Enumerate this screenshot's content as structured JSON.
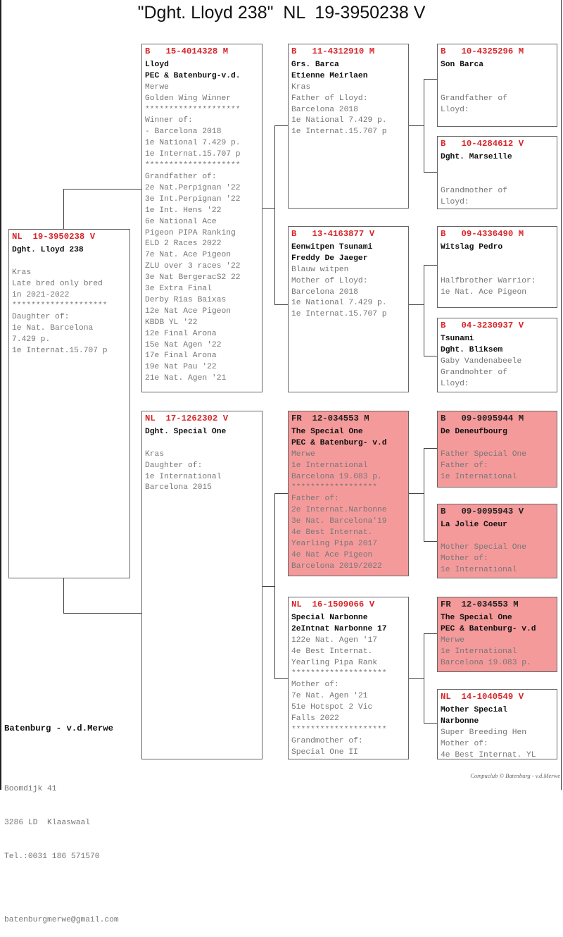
{
  "title": "\"Dght. Lloyd 238\"  NL  19-3950238 V",
  "pink_color": "#f59a9b",
  "ring_color": "#d8262a",
  "boxes": [
    {
      "id": "subject",
      "header": "NL  19-3950238 V",
      "pink": false,
      "names": [
        "Dght. Lloyd 238"
      ],
      "info": [
        "",
        "Kras",
        "Late bred only bred",
        "in 2021-2022",
        "********************",
        "Daughter of:",
        "1e Nat. Barcelona",
        "7.429 p.",
        "1e Internat.15.707 p"
      ]
    },
    {
      "id": "sire",
      "header": "B   15-4014328 M",
      "pink": false,
      "names": [
        "Lloyd",
        "PEC & Batenburg-v.d."
      ],
      "info": [
        "Merwe",
        "Golden Wing Winner",
        "********************",
        "Winner of:",
        "- Barcelona 2018",
        "1e National 7.429 p.",
        "1e Internat.15.707 p",
        "********************",
        "Grandfather of:",
        "2e Nat.Perpignan '22",
        "3e Int.Perpignan '22",
        "1e Int. Hens '22",
        "6e National Ace",
        "Pigeon PIPA Ranking",
        "ELD 2 Races 2022",
        "7e Nat. Ace Pigeon",
        "ZLU over 3 races '22",
        "3e Nat BergeracS2 22",
        "3e Extra Final",
        "Derby Rias Baixas",
        "12e Nat Ace Pigeon",
        "KBDB YL '22",
        "12e Final Arona",
        "15e Nat Agen '22",
        "17e Final Arona",
        "19e Nat Pau '22",
        "21e Nat. Agen '21"
      ]
    },
    {
      "id": "dam",
      "header": "NL  17-1262302 V",
      "pink": false,
      "names": [
        "Dght. Special One"
      ],
      "info": [
        "",
        "Kras",
        "Daughter of:",
        "1e International",
        "Barcelona 2015"
      ]
    },
    {
      "id": "sire-sire",
      "header": "B   11-4312910 M",
      "pink": false,
      "names": [
        "Grs. Barca",
        "Etienne Meirlaen"
      ],
      "info": [
        "Kras",
        "Father of Lloyd:",
        "Barcelona 2018",
        "1e National 7.429 p.",
        "1e Internat.15.707 p"
      ]
    },
    {
      "id": "sire-dam",
      "header": "B   13-4163877 V",
      "pink": false,
      "names": [
        "Eenwitpen Tsunami",
        "Freddy De Jaeger"
      ],
      "info": [
        "Blauw witpen",
        "Mother of Lloyd:",
        "Barcelona 2018",
        "1e National 7.429 p.",
        "1e Internat.15.707 p"
      ]
    },
    {
      "id": "dam-sire",
      "header": "FR  12-034553 M",
      "pink": true,
      "names": [
        "The Special One",
        "PEC & Batenburg- v.d"
      ],
      "info": [
        "Merwe",
        "1e International",
        "Barcelona 19.083 p.",
        "******************",
        "Father of:",
        "2e Internat.Narbonne",
        "3e Nat. Barcelona'19",
        "4e Best Internat.",
        "Yearling Pipa 2017",
        "4e Nat Ace Pigeon",
        "Barcelona 2019/2022"
      ]
    },
    {
      "id": "dam-dam",
      "header": "NL  16-1509066 V",
      "pink": false,
      "names": [
        "Special Narbonne",
        "2eIntnat Narbonne 17"
      ],
      "info": [
        "122e Nat. Agen '17",
        "4e Best Internat.",
        "Yearling Pipa Rank",
        "********************",
        "Mother of:",
        "7e Nat. Agen '21",
        "51e Hotspot 2 Vic",
        "Falls 2022",
        "********************",
        "Grandmother of:",
        "Special One II"
      ]
    },
    {
      "id": "sss",
      "header": "B   10-4325296 M",
      "pink": false,
      "names": [
        "Son Barca"
      ],
      "info": [
        "",
        "",
        "Grandfather of",
        "Lloyd:"
      ]
    },
    {
      "id": "ssd",
      "header": "B   10-4284612 V",
      "pink": false,
      "names": [
        "Dght. Marseille"
      ],
      "info": [
        "",
        "",
        "Grandmother of",
        "Lloyd:"
      ]
    },
    {
      "id": "sds",
      "header": "B   09-4336490 M",
      "pink": false,
      "names": [
        "Witslag Pedro"
      ],
      "info": [
        "",
        "",
        "Halfbrother Warrior:",
        "1e Nat. Ace Pigeon"
      ]
    },
    {
      "id": "sdd",
      "header": "B   04-3230937 V",
      "pink": false,
      "names": [
        "Tsunami",
        "Dght. Bliksem"
      ],
      "info": [
        "Gaby Vandenabeele",
        "Grandmohter of",
        "Lloyd:"
      ]
    },
    {
      "id": "dss",
      "header": "B   09-9095944 M",
      "pink": true,
      "names": [
        "De Deneufbourg"
      ],
      "info": [
        "",
        "Father Special One",
        "Father of:",
        "1e International"
      ]
    },
    {
      "id": "dsd",
      "header": "B   09-9095943 V",
      "pink": true,
      "names": [
        "La Jolie Coeur"
      ],
      "info": [
        "",
        "Mother Special One",
        "Mother of:",
        "1e International"
      ]
    },
    {
      "id": "dds",
      "header": "FR  12-034553 M",
      "pink": true,
      "names": [
        "The Special One",
        "PEC & Batenburg- v.d"
      ],
      "info": [
        "Merwe",
        "1e International",
        "Barcelona 19.083 p."
      ]
    },
    {
      "id": "ddd",
      "header": "NL  14-1040549 V",
      "pink": false,
      "names": [
        "Mother Special",
        "Narbonne"
      ],
      "info": [
        "Super Breeding Hen",
        "Mother of:",
        "4e Best Internat. YL"
      ]
    }
  ],
  "footer": {
    "name": "Batenburg - v.d.Merwe",
    "address": "Boomdijk 41",
    "city": "3286 LD  Klaaswaal",
    "phone": "Tel.:0031 186 571570",
    "email": "batenburgmerwe@gmail.com"
  },
  "credit": "Compuclub © Batenburg - v.d.Merwe"
}
